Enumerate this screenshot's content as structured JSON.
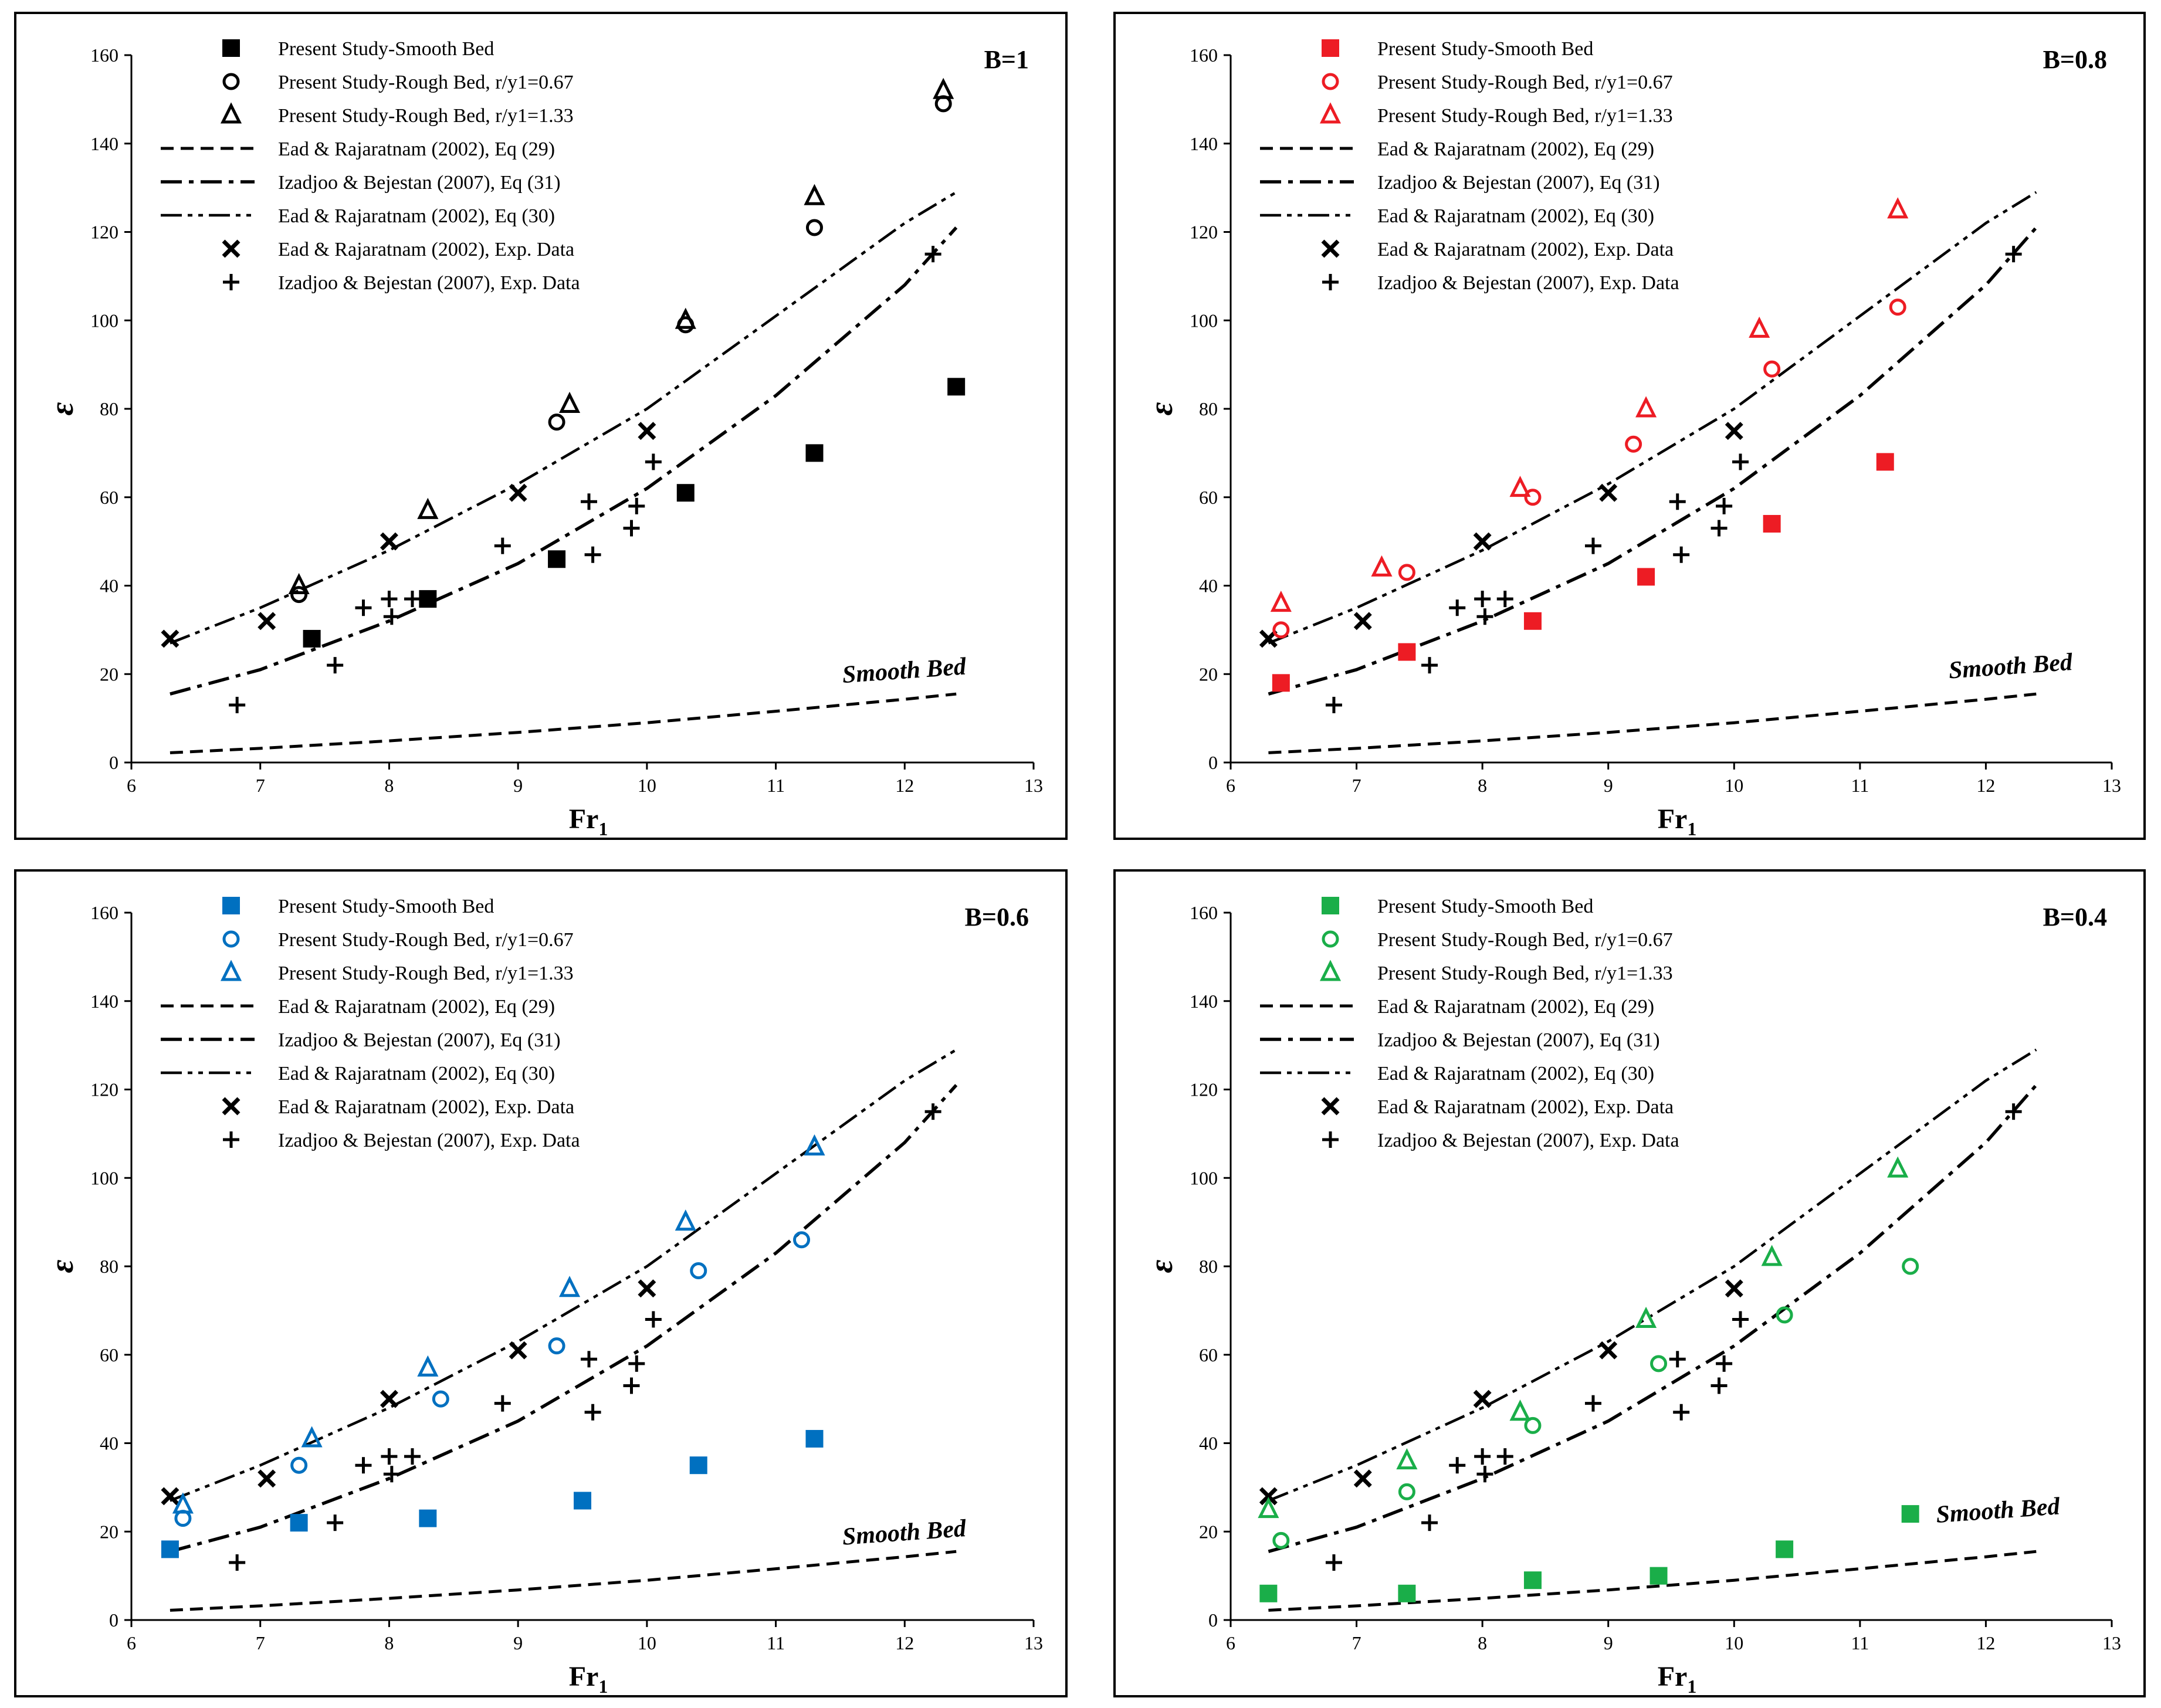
{
  "legend_entries": {
    "present_smooth": "Present Study-Smooth Bed",
    "present_rough_067": "Present Study-Rough Bed, r/y1=0.67",
    "present_rough_133": "Present Study-Rough Bed, r/y1=1.33",
    "ead_eq29": "Ead & Rajaratnam (2002), Eq (29)",
    "izadjoo_eq31": "Izadjoo & Bejestan (2007), Eq (31)",
    "ead_eq30": "Ead & Rajaratnam (2002), Eq (30)",
    "ead_exp": "Ead & Rajaratnam (2002), Exp. Data",
    "izadjoo_exp": "Izadjoo & Bejestan (2007), Exp. Data"
  },
  "axes": {
    "xlabel_main": "Fr",
    "xlabel_sub": "1",
    "ylabel": "ε",
    "xlim": [
      6,
      13
    ],
    "ylim": [
      0,
      160
    ],
    "x_ticks": [
      "6",
      "7",
      "8",
      "9",
      "10",
      "11",
      "12",
      "13"
    ],
    "y_ticks": [
      "0",
      "20",
      "40",
      "60",
      "80",
      "100",
      "120",
      "140",
      "160"
    ]
  },
  "annotation_smooth": "Smooth Bed",
  "chart_data": [
    {
      "type": "scatter",
      "panel_label": "B=1",
      "color": "#000000",
      "smooth_annotation_point": [
        12,
        19
      ],
      "series": [
        {
          "key": "present_smooth",
          "marker": "square",
          "points": [
            [
              7.4,
              28
            ],
            [
              8.3,
              37
            ],
            [
              9.3,
              46
            ],
            [
              10.3,
              61
            ],
            [
              11.3,
              70
            ],
            [
              12.4,
              85
            ]
          ]
        },
        {
          "key": "present_rough_067",
          "marker": "circle",
          "points": [
            [
              7.3,
              38
            ],
            [
              9.3,
              77
            ],
            [
              10.3,
              99
            ],
            [
              11.3,
              121
            ],
            [
              12.3,
              149
            ]
          ]
        },
        {
          "key": "present_rough_133",
          "marker": "triangle",
          "points": [
            [
              7.3,
              40
            ],
            [
              8.3,
              57
            ],
            [
              9.4,
              81
            ],
            [
              10.3,
              100
            ],
            [
              11.3,
              128
            ],
            [
              12.3,
              152
            ]
          ]
        }
      ]
    },
    {
      "type": "scatter",
      "panel_label": "B=0.8",
      "color": "#ed1c24",
      "smooth_annotation_point": [
        12.2,
        20
      ],
      "series": [
        {
          "key": "present_smooth",
          "marker": "square",
          "points": [
            [
              6.4,
              18
            ],
            [
              7.4,
              25
            ],
            [
              8.4,
              32
            ],
            [
              9.3,
              42
            ],
            [
              10.3,
              54
            ],
            [
              11.2,
              68
            ]
          ]
        },
        {
          "key": "present_rough_067",
          "marker": "circle",
          "points": [
            [
              6.4,
              30
            ],
            [
              7.4,
              43
            ],
            [
              8.4,
              60
            ],
            [
              9.2,
              72
            ],
            [
              10.3,
              89
            ],
            [
              11.3,
              103
            ]
          ]
        },
        {
          "key": "present_rough_133",
          "marker": "triangle",
          "points": [
            [
              6.4,
              36
            ],
            [
              7.2,
              44
            ],
            [
              8.3,
              62
            ],
            [
              9.3,
              80
            ],
            [
              10.2,
              98
            ],
            [
              11.3,
              125
            ]
          ]
        }
      ]
    },
    {
      "type": "scatter",
      "panel_label": "B=0.6",
      "color": "#0070c0",
      "smooth_annotation_point": [
        12,
        18
      ],
      "series": [
        {
          "key": "present_smooth",
          "marker": "square",
          "points": [
            [
              6.3,
              16
            ],
            [
              7.3,
              22
            ],
            [
              8.3,
              23
            ],
            [
              9.5,
              27
            ],
            [
              10.4,
              35
            ],
            [
              11.3,
              41
            ]
          ]
        },
        {
          "key": "present_rough_067",
          "marker": "circle",
          "points": [
            [
              6.4,
              23
            ],
            [
              7.3,
              35
            ],
            [
              8.4,
              50
            ],
            [
              9.3,
              62
            ],
            [
              10.4,
              79
            ],
            [
              11.2,
              86
            ]
          ]
        },
        {
          "key": "present_rough_133",
          "marker": "triangle",
          "points": [
            [
              6.4,
              26
            ],
            [
              7.4,
              41
            ],
            [
              8.3,
              57
            ],
            [
              9.4,
              75
            ],
            [
              10.3,
              90
            ],
            [
              11.3,
              107
            ]
          ]
        }
      ]
    },
    {
      "type": "scatter",
      "panel_label": "B=0.4",
      "color": "#1aae49",
      "smooth_annotation_point": [
        12.1,
        23
      ],
      "series": [
        {
          "key": "present_smooth",
          "marker": "square",
          "points": [
            [
              6.3,
              6
            ],
            [
              7.4,
              6
            ],
            [
              8.4,
              9
            ],
            [
              9.4,
              10
            ],
            [
              10.4,
              16
            ],
            [
              11.4,
              24
            ]
          ]
        },
        {
          "key": "present_rough_067",
          "marker": "circle",
          "points": [
            [
              6.4,
              18
            ],
            [
              7.4,
              29
            ],
            [
              8.4,
              44
            ],
            [
              9.4,
              58
            ],
            [
              10.4,
              69
            ],
            [
              11.4,
              80
            ]
          ]
        },
        {
          "key": "present_rough_133",
          "marker": "triangle",
          "points": [
            [
              6.3,
              25
            ],
            [
              7.4,
              36
            ],
            [
              8.3,
              47
            ],
            [
              9.3,
              68
            ],
            [
              10.3,
              82
            ],
            [
              11.3,
              102
            ]
          ]
        }
      ]
    }
  ],
  "shared_data": {
    "ead_exp": [
      [
        6.3,
        28
      ],
      [
        7.05,
        32
      ],
      [
        8.0,
        50
      ],
      [
        9.0,
        61
      ],
      [
        10.0,
        75
      ]
    ],
    "izadjoo_exp": [
      [
        6.82,
        13
      ],
      [
        7.58,
        22
      ],
      [
        7.8,
        35
      ],
      [
        8.0,
        37
      ],
      [
        8.02,
        33
      ],
      [
        8.18,
        37
      ],
      [
        8.88,
        49
      ],
      [
        9.55,
        59
      ],
      [
        9.58,
        47
      ],
      [
        9.88,
        53
      ],
      [
        9.92,
        58
      ],
      [
        10.05,
        68
      ],
      [
        12.22,
        115
      ]
    ],
    "ead_eq29": [
      [
        6.3,
        2.2
      ],
      [
        7,
        3.2
      ],
      [
        8,
        4.9
      ],
      [
        9,
        6.8
      ],
      [
        10,
        9.0
      ],
      [
        11,
        11.6
      ],
      [
        12,
        14.3
      ],
      [
        12.4,
        15.5
      ]
    ],
    "izadjoo_eq31": [
      [
        6.3,
        15.5
      ],
      [
        7,
        21
      ],
      [
        8,
        32
      ],
      [
        9,
        45
      ],
      [
        10,
        62
      ],
      [
        11,
        83
      ],
      [
        12,
        108
      ],
      [
        12.4,
        121
      ]
    ],
    "ead_eq30": [
      [
        6.3,
        27
      ],
      [
        7,
        35
      ],
      [
        8,
        48
      ],
      [
        9,
        63
      ],
      [
        10,
        80
      ],
      [
        11,
        101
      ],
      [
        12,
        122
      ],
      [
        12.4,
        129
      ]
    ]
  }
}
